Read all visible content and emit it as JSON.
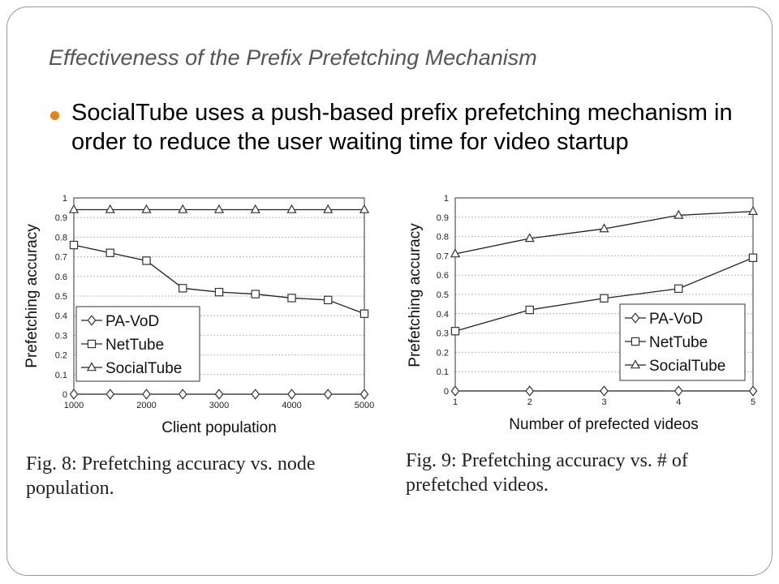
{
  "slide": {
    "title": "Effectiveness of the Prefix Prefetching Mechanism",
    "bullet": "SocialTube uses a push-based prefix prefetching mechanism in order to reduce the user waiting time for video startup",
    "colors": {
      "bullet": "#e48312",
      "title": "#555555"
    }
  },
  "chart_data": [
    {
      "type": "line",
      "xlabel": "Client population",
      "ylabel": "Prefetching accuracy",
      "x": [
        1000,
        1500,
        2000,
        2500,
        3000,
        3500,
        4000,
        4500,
        5000
      ],
      "x_ticks": [
        1000,
        2000,
        3000,
        4000,
        5000
      ],
      "xlim": [
        1000,
        5000
      ],
      "ylim": [
        0,
        1
      ],
      "y_ticks": [
        "0",
        "0.1",
        "0.2",
        "0.3",
        "0.4",
        "0.5",
        "0.6",
        "0.7",
        "0.8",
        "0.9",
        "1"
      ],
      "grid": true,
      "legend": "bottom-left",
      "series": [
        {
          "name": "PA-VoD",
          "marker": "diamond",
          "values": [
            0,
            0,
            0,
            0,
            0,
            0,
            0,
            0,
            0
          ]
        },
        {
          "name": "NetTube",
          "marker": "square",
          "values": [
            0.76,
            0.72,
            0.68,
            0.54,
            0.52,
            0.51,
            0.49,
            0.48,
            0.41
          ]
        },
        {
          "name": "SocialTube",
          "marker": "triangle",
          "values": [
            0.94,
            0.94,
            0.94,
            0.94,
            0.94,
            0.94,
            0.94,
            0.94,
            0.94
          ]
        }
      ],
      "caption": "Fig. 8: Prefetching accuracy vs. node population."
    },
    {
      "type": "line",
      "xlabel": "Number of prefected videos",
      "ylabel": "Prefetching accuracy",
      "x": [
        1,
        2,
        3,
        4,
        5
      ],
      "x_ticks": [
        1,
        2,
        3,
        4,
        5
      ],
      "xlim": [
        1,
        5
      ],
      "ylim": [
        0,
        1
      ],
      "y_ticks": [
        "0",
        "0.1",
        "0.2",
        "0.3",
        "0.4",
        "0.5",
        "0.6",
        "0.7",
        "0.8",
        "0.9",
        "1"
      ],
      "grid": true,
      "legend": "bottom-right",
      "series": [
        {
          "name": "PA-VoD",
          "marker": "diamond",
          "values": [
            0,
            0,
            0,
            0,
            0
          ]
        },
        {
          "name": "NetTube",
          "marker": "square",
          "values": [
            0.31,
            0.42,
            0.48,
            0.53,
            0.69
          ]
        },
        {
          "name": "SocialTube",
          "marker": "triangle",
          "values": [
            0.71,
            0.79,
            0.84,
            0.91,
            0.93
          ]
        }
      ],
      "caption": "Fig. 9: Prefetching accuracy vs. # of prefetched videos."
    }
  ]
}
